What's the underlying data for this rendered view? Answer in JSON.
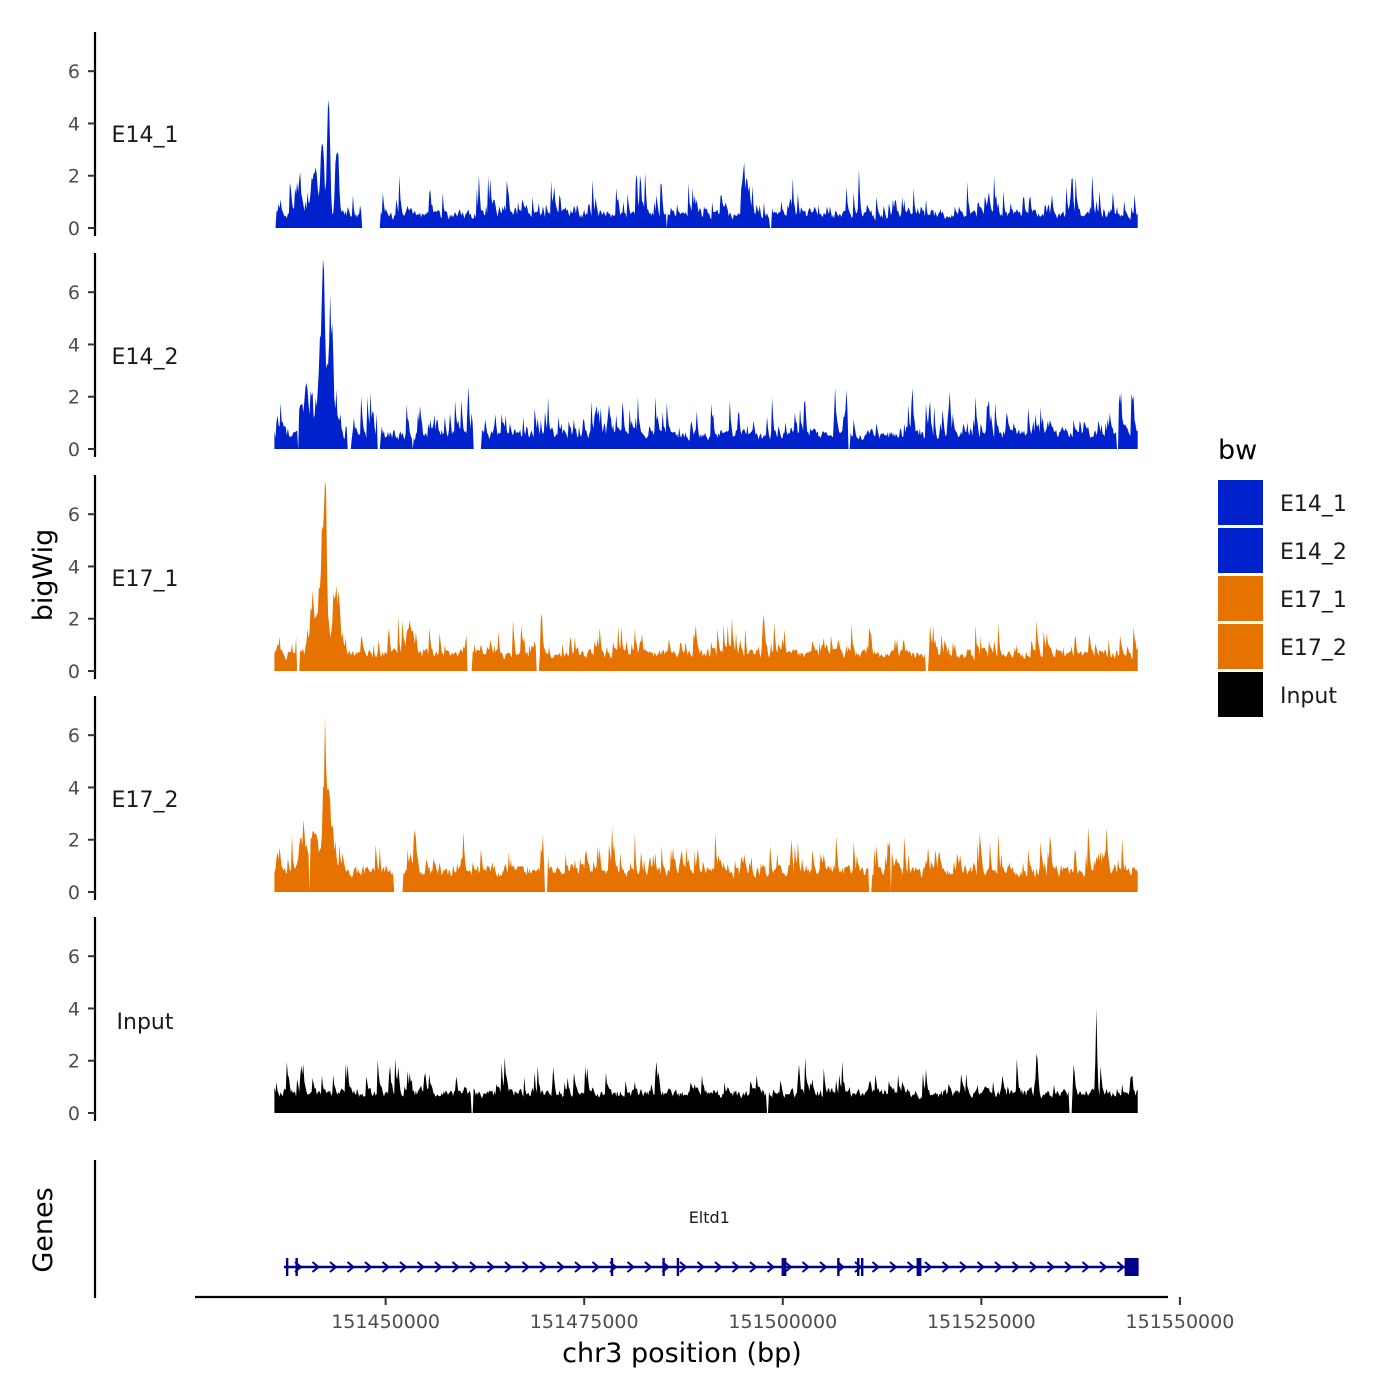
{
  "chart_data": {
    "type": "area",
    "title": "",
    "ylabel": "bigWig",
    "genes_label": "Genes",
    "xlabel": "chr3 position (bp)",
    "xlim": [
      151426000,
      151548500
    ],
    "xticks": [
      151450000,
      151475000,
      151500000,
      151525000,
      151550000
    ],
    "xtick_labels": [
      "151450000",
      "151475000",
      "151500000",
      "151525000",
      "151550000"
    ],
    "ylim": [
      0,
      7.5
    ],
    "yticks": [
      0,
      2,
      4,
      6
    ],
    "ytick_labels": [
      "0",
      "2",
      "4",
      "6"
    ],
    "data_range": [
      151436000,
      151544800
    ],
    "series": [
      {
        "name": "E14_1",
        "color": "#0022cc",
        "base": 0.45,
        "noise": 0.5,
        "spikes": 0.32,
        "seed": 11,
        "gaps": [
          [
            151436000,
            151436200
          ],
          [
            151447000,
            151449300
          ],
          [
            151498400,
            151498600
          ],
          [
            151485300,
            151485500
          ]
        ],
        "peaks": [
          [
            151442800,
            4.9,
            250
          ],
          [
            151442000,
            2.6,
            300
          ],
          [
            151443900,
            2.9,
            300
          ],
          [
            151441000,
            1.8,
            500
          ],
          [
            151439000,
            1.2,
            400
          ],
          [
            151495100,
            2.2,
            200
          ]
        ]
      },
      {
        "name": "E14_2",
        "color": "#0022cc",
        "base": 0.45,
        "noise": 0.6,
        "spikes": 0.38,
        "seed": 23,
        "gaps": [
          [
            151438900,
            151439100
          ],
          [
            151445200,
            151445700
          ],
          [
            151449000,
            151449300
          ],
          [
            151453300,
            151453500
          ],
          [
            151461000,
            151462000
          ],
          [
            151508200,
            151508500
          ],
          [
            151542000,
            151542300
          ]
        ],
        "peaks": [
          [
            151442200,
            6.3,
            220
          ],
          [
            151441800,
            3.8,
            350
          ],
          [
            151443200,
            2.8,
            400
          ],
          [
            151440000,
            1.5,
            600
          ],
          [
            151442900,
            2.2,
            500
          ]
        ]
      },
      {
        "name": "E17_1",
        "color": "#e67300",
        "base": 0.7,
        "noise": 0.55,
        "spikes": 0.3,
        "seed": 37,
        "gaps": [
          [
            151438800,
            151439200
          ],
          [
            151460200,
            151460900
          ],
          [
            151469000,
            151469300
          ],
          [
            151518000,
            151518300
          ]
        ],
        "peaks": [
          [
            151442400,
            5.0,
            300
          ],
          [
            151442000,
            2.5,
            500
          ],
          [
            151443800,
            2.1,
            600
          ],
          [
            151441000,
            1.4,
            600
          ],
          [
            151453200,
            1.2,
            400
          ]
        ]
      },
      {
        "name": "E17_2",
        "color": "#e67300",
        "base": 0.85,
        "noise": 0.65,
        "spikes": 0.33,
        "seed": 51,
        "gaps": [
          [
            151440300,
            151440500
          ],
          [
            151451000,
            151452200
          ],
          [
            151470000,
            151470400
          ],
          [
            151510800,
            151511200
          ],
          [
            151513500,
            151513700
          ]
        ],
        "peaks": [
          [
            151442300,
            4.1,
            300
          ],
          [
            151443000,
            2.6,
            500
          ],
          [
            151441000,
            1.8,
            700
          ],
          [
            151439500,
            1.3,
            500
          ]
        ]
      },
      {
        "name": "Input",
        "color": "#000000",
        "base": 0.95,
        "noise": 0.55,
        "spikes": 0.18,
        "seed": 67,
        "gaps": [
          [
            151460800,
            151461000
          ],
          [
            151498000,
            151498200
          ],
          [
            151536000,
            151536400
          ]
        ],
        "peaks": [
          [
            151539500,
            3.0,
            150
          ],
          [
            151532000,
            1.5,
            200
          ]
        ]
      }
    ],
    "legend": {
      "title": "bw",
      "entries": [
        {
          "label": "E14_1",
          "color": "#0022cc"
        },
        {
          "label": "E14_2",
          "color": "#0022cc"
        },
        {
          "label": "E17_1",
          "color": "#e67300"
        },
        {
          "label": "E17_2",
          "color": "#e67300"
        },
        {
          "label": "Input",
          "color": "#000000"
        }
      ]
    },
    "gene": {
      "name": "Eltd1",
      "color": "#00008b",
      "start": 151437200,
      "end": 151544800,
      "strand": "+",
      "exons": [
        151437600,
        151438800,
        151478500,
        151485000,
        151486800,
        151500000,
        151500300,
        151507000,
        151509500,
        151510000,
        151517000,
        151517300
      ]
    }
  }
}
